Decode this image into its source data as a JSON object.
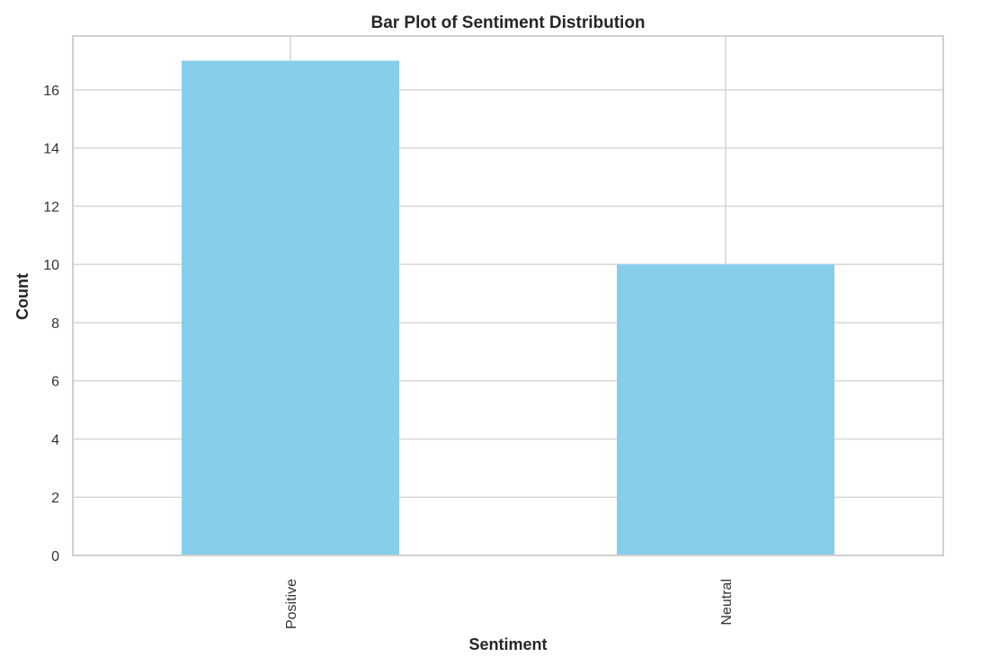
{
  "chart_data": {
    "type": "bar",
    "title": "Bar Plot of Sentiment Distribution",
    "xlabel": "Sentiment",
    "ylabel": "Count",
    "categories": [
      "Positive",
      "Neutral"
    ],
    "values": [
      17,
      10
    ],
    "ylim": [
      0,
      17.85
    ],
    "yticks": [
      0,
      2,
      4,
      6,
      8,
      10,
      12,
      14,
      16
    ],
    "grid": true,
    "bar_color": "#87CEEB",
    "x_tick_rotation": "vertical"
  }
}
